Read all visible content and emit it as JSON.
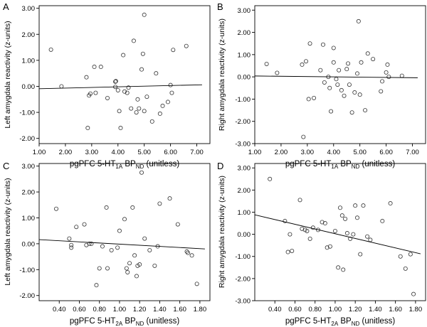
{
  "chart_data": [
    {
      "letter": "A",
      "type": "scatter",
      "ylabel": "Left amygdala reactivity (z-units)",
      "xlabel_parts": {
        "prefix": "pgPFC 5-HT",
        "sub1": "1A",
        "mid": " BP",
        "sub2": "ND",
        "suffix": " (unitless)"
      },
      "xlim": [
        1.0,
        7.5
      ],
      "ylim": [
        -2.2,
        3.1
      ],
      "xticks": [
        1.0,
        2.0,
        3.0,
        4.0,
        5.0,
        6.0,
        7.0
      ],
      "xtick_labels": [
        "1.00",
        "2.00",
        "3.00",
        "4.00",
        "5.00",
        "6.00",
        "7.00"
      ],
      "yticks": [
        -2.0,
        -1.0,
        0.0,
        1.0,
        2.0,
        3.0
      ],
      "ytick_labels": [
        "-2.00",
        "-1.00",
        "0.00",
        "1.00",
        "2.00",
        "3.00"
      ],
      "fit_line": {
        "x": [
          1.0,
          7.2
        ],
        "y": [
          -0.09,
          0.06
        ]
      },
      "points": [
        [
          1.45,
          1.41
        ],
        [
          1.85,
          0.0
        ],
        [
          2.8,
          0.35
        ],
        [
          2.85,
          -1.6
        ],
        [
          2.9,
          -0.35
        ],
        [
          2.95,
          -0.28
        ],
        [
          3.1,
          0.75
        ],
        [
          3.15,
          -0.25
        ],
        [
          3.35,
          0.75
        ],
        [
          3.6,
          -0.45
        ],
        [
          3.9,
          0.18
        ],
        [
          3.92,
          0.2
        ],
        [
          3.9,
          -0.02
        ],
        [
          4.0,
          -0.15
        ],
        [
          4.05,
          -0.95
        ],
        [
          4.1,
          -1.6
        ],
        [
          4.2,
          1.2
        ],
        [
          4.25,
          -0.2
        ],
        [
          4.35,
          -0.25
        ],
        [
          4.4,
          -0.05
        ],
        [
          4.5,
          -0.85
        ],
        [
          4.6,
          1.75
        ],
        [
          4.7,
          -1.0
        ],
        [
          4.75,
          -0.5
        ],
        [
          4.8,
          -0.85
        ],
        [
          4.9,
          0.65
        ],
        [
          4.95,
          1.25
        ],
        [
          5.0,
          -0.95
        ],
        [
          5.0,
          2.75
        ],
        [
          5.1,
          -0.4
        ],
        [
          5.3,
          -1.35
        ],
        [
          5.45,
          0.5
        ],
        [
          5.6,
          -1.05
        ],
        [
          5.7,
          -0.75
        ],
        [
          5.9,
          -0.6
        ],
        [
          6.0,
          0.05
        ],
        [
          6.05,
          -0.25
        ],
        [
          6.1,
          1.4
        ],
        [
          6.6,
          1.55
        ]
      ]
    },
    {
      "letter": "B",
      "type": "scatter",
      "ylabel": "Right amygdala reactivity (z-units)",
      "xlabel_parts": {
        "prefix": "pgPFC 5-HT",
        "sub1": "1A",
        "mid": " BP",
        "sub2": "ND",
        "suffix": " (unitless)"
      },
      "xlim": [
        1.0,
        7.5
      ],
      "ylim": [
        -3.0,
        3.2
      ],
      "xticks": [
        1.0,
        2.0,
        3.0,
        4.0,
        5.0,
        6.0,
        7.0
      ],
      "xtick_labels": [
        "1.00",
        "2.00",
        "3.00",
        "4.00",
        "5.00",
        "6.00",
        "7.00"
      ],
      "yticks": [
        -3.0,
        -2.0,
        -1.0,
        0.0,
        1.0,
        2.0,
        3.0
      ],
      "ytick_labels": [
        "-3.00",
        "-2.00",
        "-1.00",
        "0.00",
        "1.00",
        "2.00",
        "3.00"
      ],
      "fit_line": {
        "x": [
          1.0,
          7.2
        ],
        "y": [
          0.04,
          -0.04
        ]
      },
      "points": [
        [
          1.45,
          0.58
        ],
        [
          1.85,
          0.18
        ],
        [
          2.8,
          0.55
        ],
        [
          2.85,
          -2.7
        ],
        [
          2.95,
          0.7
        ],
        [
          3.05,
          -1.0
        ],
        [
          3.1,
          1.5
        ],
        [
          3.25,
          -0.95
        ],
        [
          3.5,
          0.3
        ],
        [
          3.6,
          1.45
        ],
        [
          3.65,
          -0.25
        ],
        [
          3.8,
          0.0
        ],
        [
          3.85,
          -0.5
        ],
        [
          3.9,
          -1.55
        ],
        [
          4.0,
          1.3
        ],
        [
          4.0,
          0.65
        ],
        [
          4.1,
          -0.1
        ],
        [
          4.15,
          -0.35
        ],
        [
          4.2,
          0.3
        ],
        [
          4.3,
          -0.6
        ],
        [
          4.4,
          -0.85
        ],
        [
          4.5,
          0.35
        ],
        [
          4.55,
          0.6
        ],
        [
          4.6,
          -0.35
        ],
        [
          4.7,
          -1.6
        ],
        [
          4.8,
          -0.7
        ],
        [
          4.9,
          0.15
        ],
        [
          4.95,
          2.5
        ],
        [
          5.0,
          -0.8
        ],
        [
          5.05,
          0.65
        ],
        [
          5.2,
          -1.5
        ],
        [
          5.3,
          1.05
        ],
        [
          5.5,
          0.8
        ],
        [
          5.8,
          -0.65
        ],
        [
          5.85,
          -0.2
        ],
        [
          6.0,
          0.2
        ],
        [
          6.05,
          0.55
        ],
        [
          6.1,
          0.0
        ],
        [
          6.6,
          0.05
        ]
      ]
    },
    {
      "letter": "C",
      "type": "scatter",
      "ylabel": "Left amygdala reactivity (z-units)",
      "xlabel_parts": {
        "prefix": "pgPFC 5-HT",
        "sub1": "2A",
        "mid": " BP",
        "sub2": "ND",
        "suffix": " (unitless)"
      },
      "xlim": [
        0.2,
        1.9
      ],
      "ylim": [
        -2.2,
        3.1
      ],
      "xticks": [
        0.4,
        0.6,
        0.8,
        1.0,
        1.2,
        1.4,
        1.6,
        1.8
      ],
      "xtick_labels": [
        "0.40",
        "0.60",
        "0.80",
        "1.00",
        "1.20",
        "1.40",
        "1.60",
        "1.80"
      ],
      "yticks": [
        -2.0,
        -1.0,
        0.0,
        1.0,
        2.0,
        3.0
      ],
      "ytick_labels": [
        "-2.00",
        "-1.00",
        "0.00",
        "1.00",
        "2.00",
        "3.00"
      ],
      "fit_line": {
        "x": [
          0.2,
          1.85
        ],
        "y": [
          0.16,
          -0.2
        ]
      },
      "points": [
        [
          0.37,
          1.35
        ],
        [
          0.5,
          0.2
        ],
        [
          0.52,
          -0.05
        ],
        [
          0.52,
          -0.15
        ],
        [
          0.57,
          0.65
        ],
        [
          0.65,
          0.75
        ],
        [
          0.67,
          -0.05
        ],
        [
          0.7,
          0.0
        ],
        [
          0.72,
          0.0
        ],
        [
          0.77,
          -1.6
        ],
        [
          0.8,
          -0.95
        ],
        [
          0.83,
          -0.1
        ],
        [
          0.87,
          1.4
        ],
        [
          0.88,
          -0.95
        ],
        [
          0.92,
          -0.25
        ],
        [
          0.98,
          -0.15
        ],
        [
          1.0,
          0.5
        ],
        [
          1.05,
          0.95
        ],
        [
          1.07,
          -0.95
        ],
        [
          1.08,
          -1.1
        ],
        [
          1.1,
          -0.75
        ],
        [
          1.13,
          1.4
        ],
        [
          1.15,
          -0.45
        ],
        [
          1.17,
          -1.25
        ],
        [
          1.18,
          -0.85
        ],
        [
          1.2,
          -0.8
        ],
        [
          1.22,
          2.75
        ],
        [
          1.25,
          0.2
        ],
        [
          1.3,
          -0.25
        ],
        [
          1.35,
          -0.85
        ],
        [
          1.38,
          -0.1
        ],
        [
          1.4,
          1.55
        ],
        [
          1.5,
          1.75
        ],
        [
          1.58,
          0.75
        ],
        [
          1.67,
          -0.3
        ],
        [
          1.68,
          -0.35
        ],
        [
          1.72,
          -0.45
        ],
        [
          1.77,
          -1.55
        ]
      ]
    },
    {
      "letter": "D",
      "type": "scatter",
      "ylabel": "Right amygdala reactivity (z-units)",
      "xlabel_parts": {
        "prefix": "pgPFC 5-HT",
        "sub1": "2A",
        "mid": " BP",
        "sub2": "ND",
        "suffix": " (unitless)"
      },
      "xlim": [
        0.2,
        1.9
      ],
      "ylim": [
        -3.0,
        3.2
      ],
      "xticks": [
        0.4,
        0.6,
        0.8,
        1.0,
        1.2,
        1.4,
        1.6,
        1.8
      ],
      "xtick_labels": [
        "0.40",
        "0.60",
        "0.80",
        "1.00",
        "1.20",
        "1.40",
        "1.60",
        "1.80"
      ],
      "yticks": [
        -3.0,
        -2.0,
        -1.0,
        0.0,
        1.0,
        2.0,
        3.0
      ],
      "ytick_labels": [
        "-3.00",
        "-2.00",
        "-1.00",
        "0.00",
        "1.00",
        "2.00",
        "3.00"
      ],
      "fit_line": {
        "x": [
          0.2,
          1.85
        ],
        "y": [
          0.88,
          -0.88
        ]
      },
      "points": [
        [
          0.35,
          2.5
        ],
        [
          0.5,
          0.6
        ],
        [
          0.53,
          -0.8
        ],
        [
          0.55,
          0.0
        ],
        [
          0.57,
          -0.75
        ],
        [
          0.65,
          1.55
        ],
        [
          0.67,
          0.25
        ],
        [
          0.7,
          0.2
        ],
        [
          0.72,
          0.15
        ],
        [
          0.75,
          -0.2
        ],
        [
          0.78,
          0.3
        ],
        [
          0.83,
          0.2
        ],
        [
          0.87,
          0.55
        ],
        [
          0.9,
          0.5
        ],
        [
          0.92,
          -0.6
        ],
        [
          0.95,
          -0.55
        ],
        [
          1.0,
          0.15
        ],
        [
          1.03,
          -1.5
        ],
        [
          1.05,
          1.2
        ],
        [
          1.07,
          0.85
        ],
        [
          1.08,
          -1.6
        ],
        [
          1.1,
          0.7
        ],
        [
          1.12,
          0.05
        ],
        [
          1.15,
          -0.2
        ],
        [
          1.18,
          0.0
        ],
        [
          1.2,
          1.3
        ],
        [
          1.22,
          0.75
        ],
        [
          1.25,
          -0.9
        ],
        [
          1.28,
          1.3
        ],
        [
          1.32,
          -0.1
        ],
        [
          1.35,
          -0.25
        ],
        [
          1.47,
          0.6
        ],
        [
          1.55,
          1.4
        ],
        [
          1.65,
          -1.0
        ],
        [
          1.7,
          -1.55
        ],
        [
          1.75,
          -0.9
        ],
        [
          1.78,
          -2.7
        ]
      ]
    }
  ]
}
